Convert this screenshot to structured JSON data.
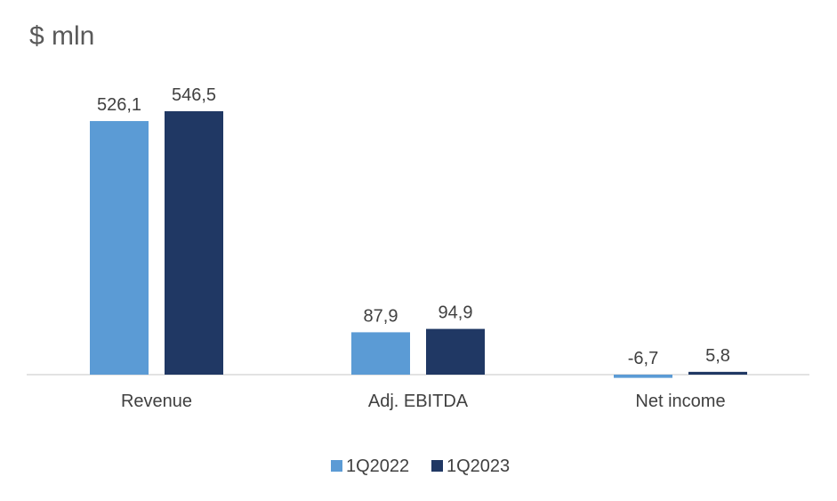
{
  "unit_label": "$ mln",
  "colors": {
    "series_1": "#5B9BD5",
    "series_2": "#203864",
    "axis": "#d9d9d9"
  },
  "chart_data": {
    "type": "bar",
    "title": "",
    "ylabel": "$ mln",
    "xlabel": "",
    "categories": [
      "Revenue",
      "Adj. EBITDA",
      "Net income"
    ],
    "series": [
      {
        "name": "1Q2022",
        "values": [
          526.1,
          87.9,
          -6.7
        ],
        "labels": [
          "526,1",
          "87,9",
          "-6,7"
        ]
      },
      {
        "name": "1Q2023",
        "values": [
          546.5,
          94.9,
          5.8
        ],
        "labels": [
          "546,5",
          "94,9",
          "5,8"
        ]
      }
    ],
    "ylim": [
      -6.7,
      546.5
    ],
    "grid": false,
    "legend": "bottom"
  }
}
